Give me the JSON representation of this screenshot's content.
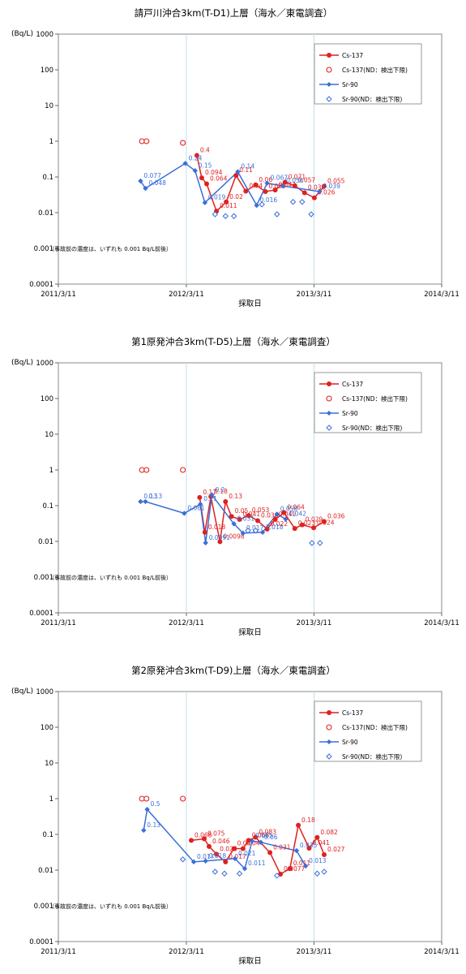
{
  "chart_data": [
    {
      "type": "scatter",
      "title": "請戸川沖合3km(T-D1)上層（海水／東電調査）",
      "ylabel": "(Bq/L)",
      "xlabel": "採取日",
      "yscale": "log",
      "ylim": [
        0.0001,
        1000
      ],
      "xlim": [
        "2011/3/11",
        "2014/3/11"
      ],
      "x_ticks": [
        "2011/3/11",
        "2012/3/11",
        "2013/3/11",
        "2014/3/11"
      ],
      "y_ticks": [
        "0.0001",
        "0.001",
        "0.01",
        "0.1",
        "1",
        "10",
        "100",
        "1000"
      ],
      "grid": true,
      "legend_position": "top-right",
      "note": "（事故前の濃度は、いずれも 0.001 Bq/L前後）",
      "colors": {
        "cs": "#e02020",
        "sr": "#3a6fd8"
      },
      "series": [
        {
          "name": "Cs-137",
          "key": "cs",
          "style": "line-filled",
          "points": [
            {
              "x": "2012/4/10",
              "y": 0.4,
              "label": "0.4"
            },
            {
              "x": "2012/4/24",
              "y": 0.094,
              "label": "0.094"
            },
            {
              "x": "2012/5/8",
              "y": 0.064,
              "label": "0.064"
            },
            {
              "x": "2012/6/5",
              "y": 0.011,
              "label": "0.011"
            },
            {
              "x": "2012/7/3",
              "y": 0.02,
              "label": "0.02"
            },
            {
              "x": "2012/7/31",
              "y": 0.11,
              "label": "0.11"
            },
            {
              "x": "2012/8/28",
              "y": 0.04,
              "label": "0.04"
            },
            {
              "x": "2012/9/25",
              "y": 0.06,
              "label": "0.06"
            },
            {
              "x": "2012/10/23",
              "y": 0.039,
              "label": "0.039"
            },
            {
              "x": "2012/11/20",
              "y": 0.043,
              "label": "0.043"
            },
            {
              "x": "2012/12/18",
              "y": 0.071,
              "label": "0.071"
            },
            {
              "x": "2013/1/15",
              "y": 0.057,
              "label": "0.057"
            },
            {
              "x": "2013/2/12",
              "y": 0.036,
              "label": "0.036"
            },
            {
              "x": "2013/3/12",
              "y": 0.026,
              "label": "0.026"
            },
            {
              "x": "2013/4/9",
              "y": 0.055,
              "label": "0.055"
            }
          ]
        },
        {
          "name": "Cs-137(ND：検出下限)",
          "key": "cs",
          "style": "open",
          "points": [
            {
              "x": "2011/11/5",
              "y": 1.0
            },
            {
              "x": "2011/11/18",
              "y": 1.0
            },
            {
              "x": "2012/3/1",
              "y": 0.9
            }
          ]
        },
        {
          "name": "Sr-90",
          "key": "sr",
          "style": "line-filled",
          "points": [
            {
              "x": "2011/11/1",
              "y": 0.077,
              "label": "0.077"
            },
            {
              "x": "2011/11/15",
              "y": 0.048,
              "label": "0.048"
            },
            {
              "x": "2012/3/8",
              "y": 0.24,
              "label": "0.24"
            },
            {
              "x": "2012/4/5",
              "y": 0.15,
              "label": "0.15"
            },
            {
              "x": "2012/5/3",
              "y": 0.019,
              "label": "0.019"
            },
            {
              "x": "2012/8/5",
              "y": 0.14,
              "label": "0.14"
            },
            {
              "x": "2012/9/28",
              "y": 0.016,
              "label": "0.016"
            },
            {
              "x": "2012/10/28",
              "y": 0.067,
              "label": "0.067"
            },
            {
              "x": "2012/12/12",
              "y": 0.056,
              "label": "0.056"
            },
            {
              "x": "2013/3/27",
              "y": 0.039,
              "label": "0.039"
            }
          ]
        },
        {
          "name": "Sr-90(ND：検出下限)",
          "key": "sr",
          "style": "open-diamond",
          "points": [
            {
              "x": "2012/6/1",
              "y": 0.009
            },
            {
              "x": "2012/7/1",
              "y": 0.008
            },
            {
              "x": "2012/7/25",
              "y": 0.008
            },
            {
              "x": "2012/10/13",
              "y": 0.017
            },
            {
              "x": "2012/11/25",
              "y": 0.009
            },
            {
              "x": "2013/1/10",
              "y": 0.02
            },
            {
              "x": "2013/2/5",
              "y": 0.02
            },
            {
              "x": "2013/3/3",
              "y": 0.009
            }
          ]
        }
      ]
    },
    {
      "type": "scatter",
      "title": "第1原発沖合3km(T-D5)上層（海水／東電調査）",
      "ylabel": "(Bq/L)",
      "xlabel": "採取日",
      "yscale": "log",
      "ylim": [
        0.0001,
        1000
      ],
      "xlim": [
        "2011/3/11",
        "2014/3/11"
      ],
      "x_ticks": [
        "2011/3/11",
        "2012/3/11",
        "2013/3/11",
        "2014/3/11"
      ],
      "y_ticks": [
        "0.0001",
        "0.001",
        "0.01",
        "0.1",
        "1",
        "10",
        "100",
        "1000"
      ],
      "grid": true,
      "legend_position": "top-right",
      "note": "（事故前の濃度は、いずれも 0.001 Bq/L前後）",
      "colors": {
        "cs": "#e02020",
        "sr": "#3a6fd8"
      },
      "series": [
        {
          "name": "Cs-137",
          "key": "cs",
          "style": "line-filled",
          "points": [
            {
              "x": "2012/4/18",
              "y": 0.17,
              "label": "0.17"
            },
            {
              "x": "2012/5/3",
              "y": 0.018,
              "label": "0.018"
            },
            {
              "x": "2012/5/20",
              "y": 0.18,
              "label": "0.18"
            },
            {
              "x": "2012/6/15",
              "y": 0.0098,
              "label": "0.0098"
            },
            {
              "x": "2012/7/1",
              "y": 0.13,
              "label": "0.13"
            },
            {
              "x": "2012/7/18",
              "y": 0.05,
              "label": "0.05"
            },
            {
              "x": "2012/8/10",
              "y": 0.041,
              "label": "0.041"
            },
            {
              "x": "2012/9/5",
              "y": 0.053,
              "label": "0.053"
            },
            {
              "x": "2012/10/1",
              "y": 0.038,
              "label": "0.038"
            },
            {
              "x": "2012/10/28",
              "y": 0.022,
              "label": "0.022"
            },
            {
              "x": "2012/11/20",
              "y": 0.041,
              "label": "0.041"
            },
            {
              "x": "2012/12/15",
              "y": 0.064,
              "label": "0.064"
            },
            {
              "x": "2013/1/15",
              "y": 0.023,
              "label": "0.023"
            },
            {
              "x": "2013/2/5",
              "y": 0.029,
              "label": "0.029"
            },
            {
              "x": "2013/3/10",
              "y": 0.024,
              "label": "0.024"
            },
            {
              "x": "2013/4/9",
              "y": 0.036,
              "label": "0.036"
            }
          ]
        },
        {
          "name": "Cs-137(ND：検出下限)",
          "key": "cs",
          "style": "open",
          "points": [
            {
              "x": "2011/11/5",
              "y": 1.0
            },
            {
              "x": "2011/11/18",
              "y": 1.0
            },
            {
              "x": "2012/3/1",
              "y": 1.0
            }
          ]
        },
        {
          "name": "Sr-90",
          "key": "sr",
          "style": "line-filled",
          "points": [
            {
              "x": "2011/11/1",
              "y": 0.13,
              "label": "0.13"
            },
            {
              "x": "2011/11/15",
              "y": 0.13,
              "label": "0.13"
            },
            {
              "x": "2012/3/5",
              "y": 0.061,
              "label": "0.061"
            },
            {
              "x": "2012/4/20",
              "y": 0.11,
              "label": "0.11"
            },
            {
              "x": "2012/5/5",
              "y": 0.0091,
              "label": "0.0091"
            },
            {
              "x": "2012/5/23",
              "y": 0.2,
              "label": "0.2"
            },
            {
              "x": "2012/7/25",
              "y": 0.031,
              "label": "0.031"
            },
            {
              "x": "2012/8/20",
              "y": 0.017,
              "label": "0.017"
            },
            {
              "x": "2012/10/15",
              "y": 0.018,
              "label": "0.018"
            },
            {
              "x": "2012/11/25",
              "y": 0.058,
              "label": "0.058"
            },
            {
              "x": "2012/12/20",
              "y": 0.042,
              "label": "0.042"
            }
          ]
        },
        {
          "name": "Sr-90(ND：検出下限)",
          "key": "sr",
          "style": "open-diamond",
          "points": [
            {
              "x": "2012/9/3",
              "y": 0.02
            },
            {
              "x": "2012/9/25",
              "y": 0.02
            },
            {
              "x": "2013/3/5",
              "y": 0.009
            },
            {
              "x": "2013/3/28",
              "y": 0.009
            }
          ]
        }
      ]
    },
    {
      "type": "scatter",
      "title": "第2原発沖合3km(T-D9)上層（海水／東電調査）",
      "ylabel": "(Bq/L)",
      "xlabel": "採取日",
      "yscale": "log",
      "ylim": [
        0.0001,
        1000
      ],
      "xlim": [
        "2011/3/11",
        "2014/3/11"
      ],
      "x_ticks": [
        "2011/3/11",
        "2012/3/11",
        "2013/3/11",
        "2014/3/11"
      ],
      "y_ticks": [
        "0.0001",
        "0.001",
        "0.01",
        "0.1",
        "1",
        "10",
        "100",
        "1000"
      ],
      "grid": true,
      "legend_position": "top-right",
      "note": "（事故前の濃度は、いずれも 0.001 Bq/L前後）",
      "colors": {
        "cs": "#e02020",
        "sr": "#3a6fd8"
      },
      "series": [
        {
          "name": "Cs-137",
          "key": "cs",
          "style": "line-filled",
          "points": [
            {
              "x": "2012/3/25",
              "y": 0.068,
              "label": "0.068"
            },
            {
              "x": "2012/5/1",
              "y": 0.075,
              "label": "0.075"
            },
            {
              "x": "2012/5/15",
              "y": 0.046,
              "label": "0.046"
            },
            {
              "x": "2012/6/5",
              "y": 0.028,
              "label": "0.028"
            },
            {
              "x": "2012/7/1",
              "y": 0.017,
              "label": "0.017"
            },
            {
              "x": "2012/7/25",
              "y": 0.04,
              "label": "0.04"
            },
            {
              "x": "2012/8/20",
              "y": 0.04,
              "label": "0.04"
            },
            {
              "x": "2012/9/5",
              "y": 0.068,
              "label": "0.068"
            },
            {
              "x": "2012/9/25",
              "y": 0.083,
              "label": "0.083"
            },
            {
              "x": "2012/11/5",
              "y": 0.031,
              "label": "0.031"
            },
            {
              "x": "2012/12/5",
              "y": 0.0077,
              "label": "0.0077"
            },
            {
              "x": "2013/1/1",
              "y": 0.011,
              "label": "0.011"
            },
            {
              "x": "2013/1/25",
              "y": 0.18,
              "label": "0.18"
            },
            {
              "x": "2013/2/25",
              "y": 0.041,
              "label": "0.041"
            },
            {
              "x": "2013/3/20",
              "y": 0.082,
              "label": "0.082"
            },
            {
              "x": "2013/4/9",
              "y": 0.027,
              "label": "0.027"
            }
          ]
        },
        {
          "name": "Cs-137(ND：検出下限)",
          "key": "cs",
          "style": "open",
          "points": [
            {
              "x": "2011/11/5",
              "y": 1.0
            },
            {
              "x": "2011/11/18",
              "y": 1.0
            },
            {
              "x": "2012/3/1",
              "y": 1.0
            }
          ]
        },
        {
          "name": "Sr-90",
          "key": "sr",
          "style": "line-filled",
          "points": [
            {
              "x": "2011/11/10",
              "y": 0.13,
              "label": "0.13"
            },
            {
              "x": "2011/11/20",
              "y": 0.5,
              "label": "0.5"
            },
            {
              "x": "2012/4/1",
              "y": 0.017,
              "label": "0.017"
            },
            {
              "x": "2012/5/5",
              "y": 0.018,
              "label": "0.018"
            },
            {
              "x": "2012/7/28",
              "y": 0.021,
              "label": "0.021"
            },
            {
              "x": "2012/8/25",
              "y": 0.011,
              "label": "0.011"
            },
            {
              "x": "2012/9/15",
              "y": 0.065,
              "label": "0.065"
            },
            {
              "x": "2012/10/10",
              "y": 0.06,
              "label": "0.06"
            },
            {
              "x": "2013/1/20",
              "y": 0.035,
              "label": "0.035"
            },
            {
              "x": "2013/2/15",
              "y": 0.013,
              "label": "0.013"
            }
          ]
        },
        {
          "name": "Sr-90(ND：検出下限)",
          "key": "sr",
          "style": "open-diamond",
          "points": [
            {
              "x": "2012/3/1",
              "y": 0.02
            },
            {
              "x": "2012/6/1",
              "y": 0.009
            },
            {
              "x": "2012/6/28",
              "y": 0.008
            },
            {
              "x": "2012/8/10",
              "y": 0.008
            },
            {
              "x": "2012/11/25",
              "y": 0.007
            },
            {
              "x": "2013/3/20",
              "y": 0.008
            },
            {
              "x": "2013/4/9",
              "y": 0.009
            }
          ]
        }
      ]
    }
  ]
}
